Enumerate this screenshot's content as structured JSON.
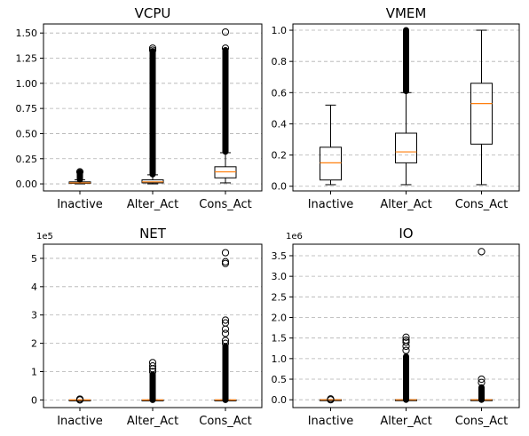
{
  "chart_data": [
    {
      "type": "box",
      "title": "VCPU",
      "offset_text": "",
      "categories": [
        "Inactive",
        "Alter_Act",
        "Cons_Act"
      ],
      "ylim": [
        -0.07,
        1.59
      ],
      "yticks": [
        0.0,
        0.25,
        0.5,
        0.75,
        1.0,
        1.25,
        1.5
      ],
      "ytick_labels": [
        "0.00",
        "0.25",
        "0.50",
        "0.75",
        "1.00",
        "1.25",
        "1.50"
      ],
      "grid": true,
      "boxes": [
        {
          "whisker_low": 0.0,
          "q1": 0.005,
          "median": 0.01,
          "q3": 0.02,
          "whisker_high": 0.04,
          "outliers": {
            "dense": [
              0.045,
              0.115
            ],
            "points": [
              0.12
            ]
          }
        },
        {
          "whisker_low": 0.0,
          "q1": 0.01,
          "median": 0.02,
          "q3": 0.04,
          "whisker_high": 0.09,
          "outliers": {
            "dense": [
              0.095,
              1.32
            ],
            "points": [
              1.33,
              1.35
            ]
          }
        },
        {
          "whisker_low": 0.01,
          "q1": 0.06,
          "median": 0.12,
          "q3": 0.17,
          "whisker_high": 0.31,
          "outliers": {
            "dense": [
              0.32,
              1.33
            ],
            "points": [
              1.35,
              1.51
            ]
          }
        }
      ]
    },
    {
      "type": "box",
      "title": "VMEM",
      "offset_text": "",
      "categories": [
        "Inactive",
        "Alter_Act",
        "Cons_Act"
      ],
      "ylim": [
        -0.03,
        1.04
      ],
      "yticks": [
        0.0,
        0.2,
        0.4,
        0.6,
        0.8,
        1.0
      ],
      "ytick_labels": [
        "0.0",
        "0.2",
        "0.4",
        "0.6",
        "0.8",
        "1.0"
      ],
      "grid": true,
      "boxes": [
        {
          "whisker_low": 0.01,
          "q1": 0.04,
          "median": 0.15,
          "q3": 0.25,
          "whisker_high": 0.52,
          "outliers": {
            "dense": [],
            "points": []
          }
        },
        {
          "whisker_low": 0.01,
          "q1": 0.15,
          "median": 0.22,
          "q3": 0.34,
          "whisker_high": 0.6,
          "outliers": {
            "dense": [
              0.61,
              1.0
            ],
            "points": []
          }
        },
        {
          "whisker_low": 0.01,
          "q1": 0.27,
          "median": 0.53,
          "q3": 0.66,
          "whisker_high": 1.0,
          "outliers": {
            "dense": [],
            "points": []
          }
        }
      ]
    },
    {
      "type": "box",
      "title": "NET",
      "offset_text": "1e5",
      "categories": [
        "Inactive",
        "Alter_Act",
        "Cons_Act"
      ],
      "ylim": [
        -0.27,
        5.5
      ],
      "yticks": [
        0,
        1,
        2,
        3,
        4,
        5
      ],
      "ytick_labels": [
        "0",
        "1",
        "2",
        "3",
        "4",
        "5"
      ],
      "grid": true,
      "boxes": [
        {
          "whisker_low": 0.0,
          "q1": 0.0,
          "median": 0.0,
          "q3": 0.0,
          "whisker_high": 0.0,
          "outliers": {
            "dense": [],
            "points": [
              0.0,
              0.03
            ]
          }
        },
        {
          "whisker_low": 0.0,
          "q1": 0.0,
          "median": 0.0,
          "q3": 0.0,
          "whisker_high": 0.0,
          "outliers": {
            "dense": [
              0.0,
              0.9
            ],
            "points": [
              1.0,
              1.1,
              1.2,
              1.32
            ]
          }
        },
        {
          "whisker_low": 0.0,
          "q1": 0.0,
          "median": 0.0,
          "q3": 0.0,
          "whisker_high": 0.0,
          "outliers": {
            "dense": [
              0.0,
              1.9
            ],
            "points": [
              2.0,
              2.1,
              2.35,
              2.5,
              2.72,
              2.82,
              4.82,
              4.88,
              5.2
            ]
          }
        }
      ]
    },
    {
      "type": "box",
      "title": "IO",
      "offset_text": "1e6",
      "categories": [
        "Inactive",
        "Alter_Act",
        "Cons_Act"
      ],
      "ylim": [
        -0.19,
        3.78
      ],
      "yticks": [
        0.0,
        0.5,
        1.0,
        1.5,
        2.0,
        2.5,
        3.0,
        3.5
      ],
      "ytick_labels": [
        "0.0",
        "0.5",
        "1.0",
        "1.5",
        "2.0",
        "2.5",
        "3.0",
        "3.5"
      ],
      "grid": true,
      "boxes": [
        {
          "whisker_low": 0.0,
          "q1": 0.0,
          "median": 0.0,
          "q3": 0.0,
          "whisker_high": 0.0,
          "outliers": {
            "dense": [],
            "points": [
              0.0,
              0.02
            ]
          }
        },
        {
          "whisker_low": 0.0,
          "q1": 0.0,
          "median": 0.0,
          "q3": 0.0,
          "whisker_high": 0.0,
          "outliers": {
            "dense": [
              0.0,
              1.05
            ],
            "points": [
              1.2,
              1.3,
              1.4,
              1.45,
              1.52
            ]
          }
        },
        {
          "whisker_low": 0.0,
          "q1": 0.0,
          "median": 0.0,
          "q3": 0.0,
          "whisker_high": 0.0,
          "outliers": {
            "dense": [
              0.0,
              0.3
            ],
            "points": [
              0.42,
              0.5,
              3.6
            ]
          }
        }
      ]
    }
  ],
  "colors": {
    "median": "#ff7f0e",
    "box": "#000000",
    "grid": "#b0b0b0"
  }
}
